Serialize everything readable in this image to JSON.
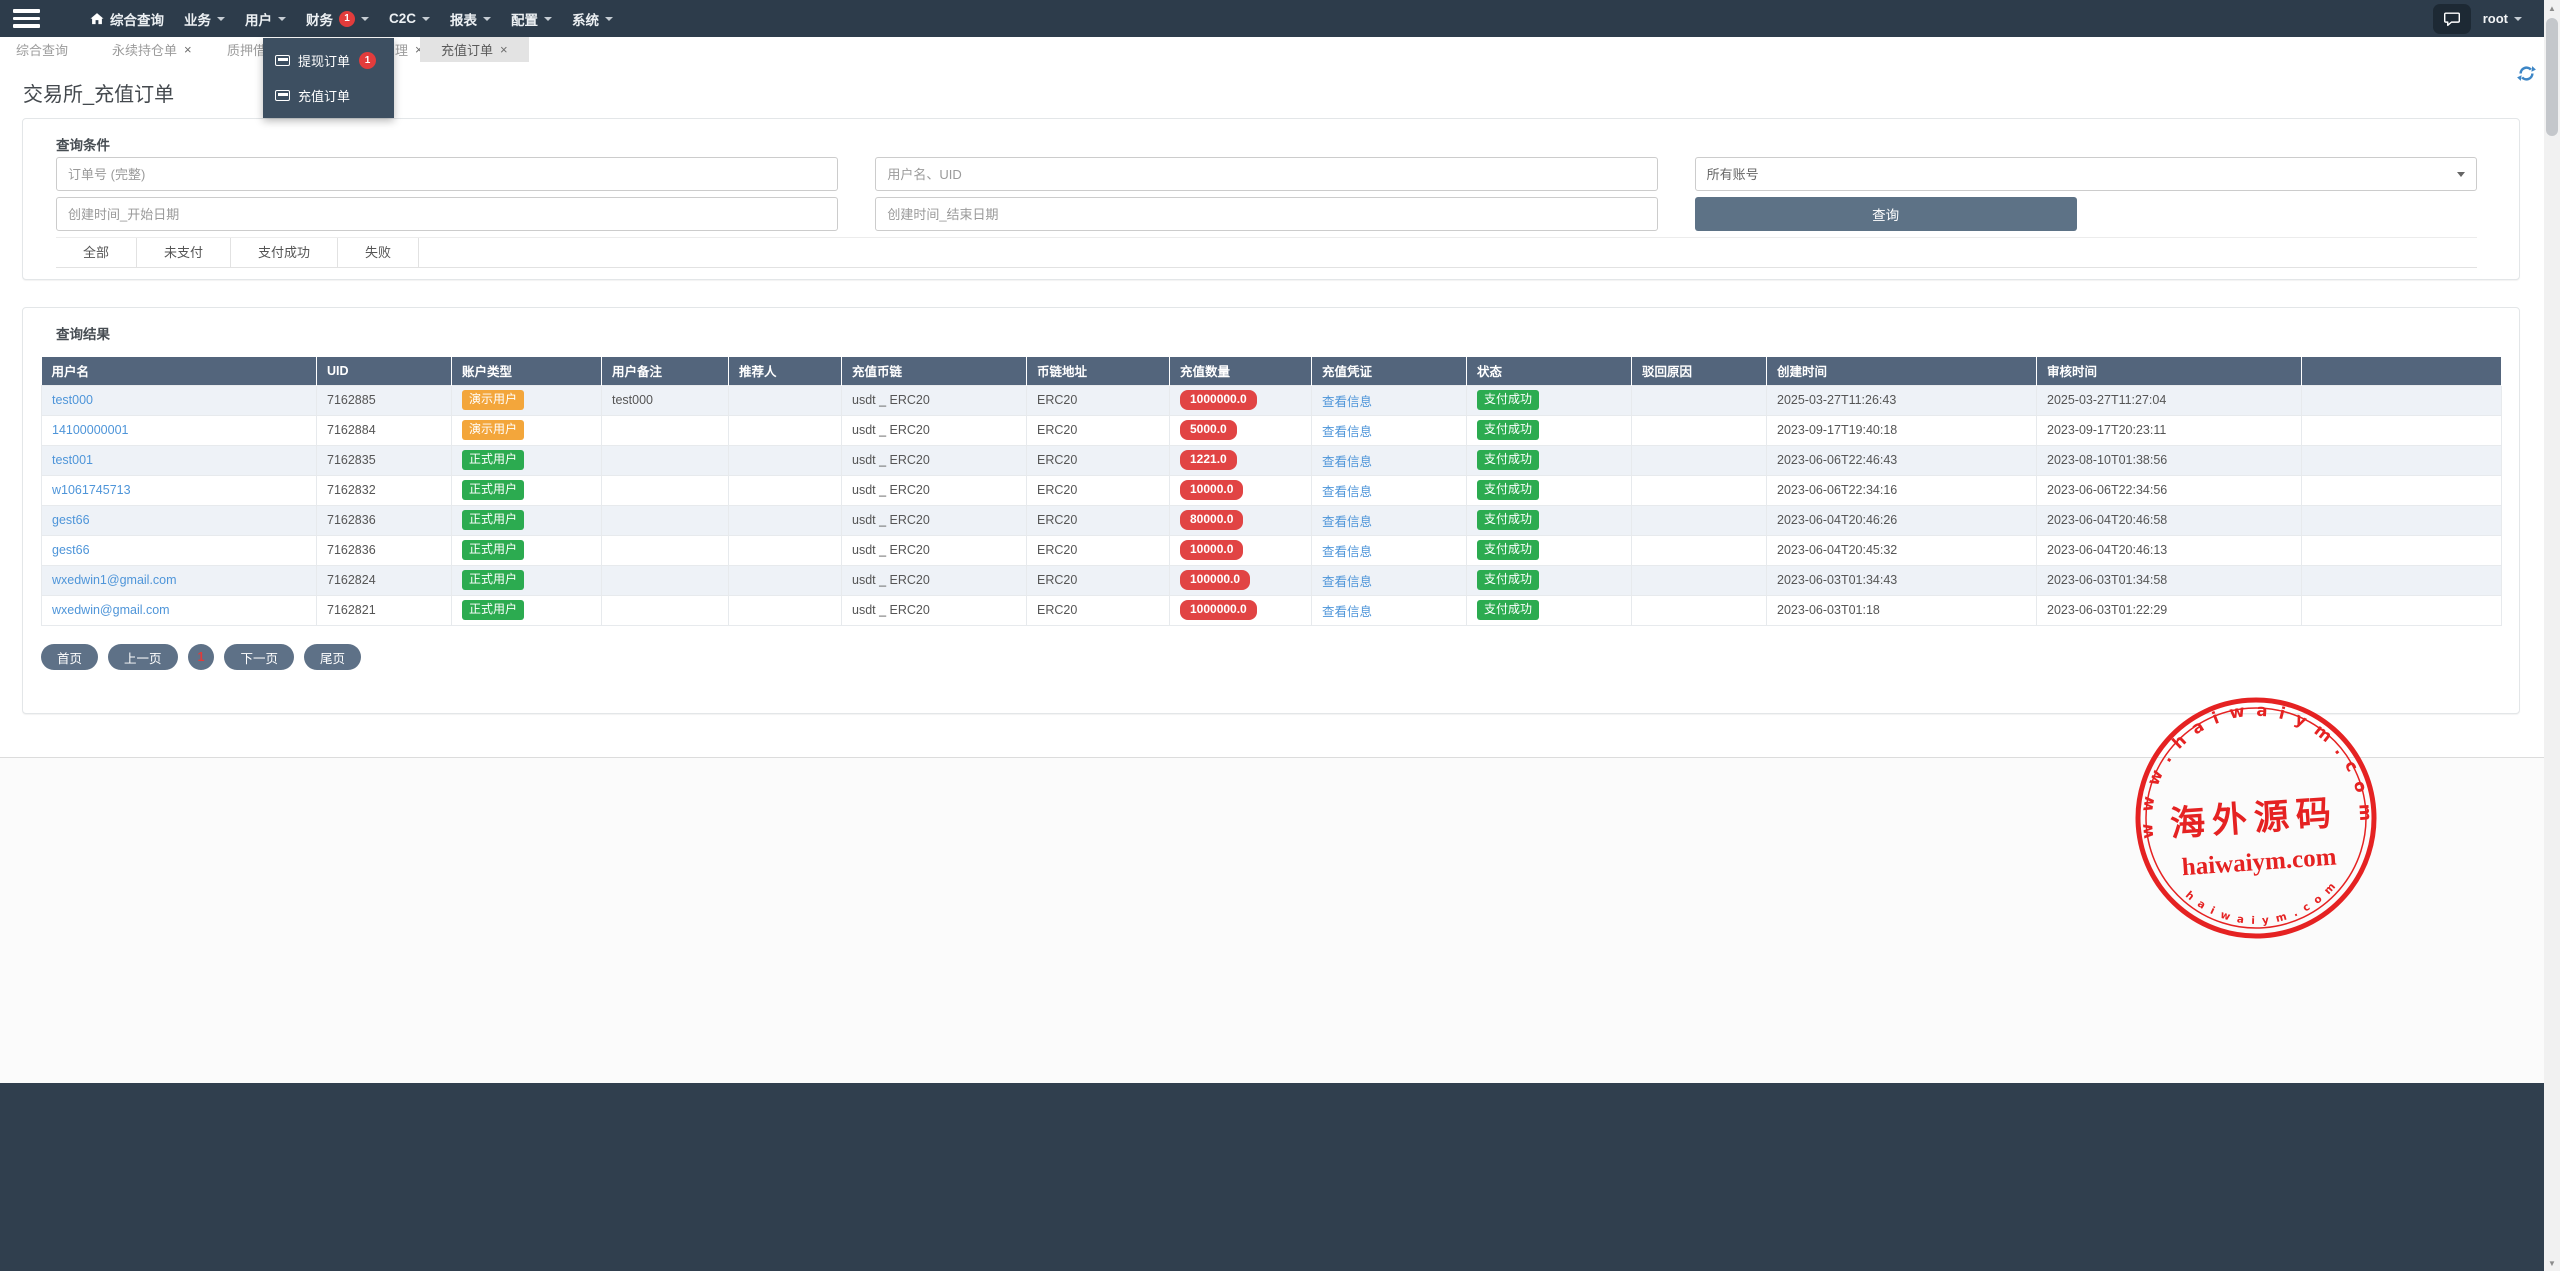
{
  "colors": {
    "navbar_bg": "#2d3c4b",
    "table_header_bg": "#53657c",
    "badge_red": "#e14444",
    "badge_orange": "#f3a63b",
    "badge_green": "#2cab50",
    "link_blue": "#4e95d9",
    "button_slate": "#5d7286",
    "notification_red": "#e23c3c",
    "stamp_red": "#e41717"
  },
  "navbar": {
    "menu": [
      {
        "label": "综合查询",
        "icon": "home",
        "caret": false
      },
      {
        "label": "业务",
        "caret": true
      },
      {
        "label": "用户",
        "caret": true
      },
      {
        "label": "财务",
        "caret": true,
        "badge": "1"
      },
      {
        "label": "C2C",
        "caret": true
      },
      {
        "label": "报表",
        "caret": true
      },
      {
        "label": "配置",
        "caret": true
      },
      {
        "label": "系统",
        "caret": true
      }
    ],
    "user": "root"
  },
  "dropdown": {
    "items": [
      {
        "label": "提现订单",
        "badge": "1"
      },
      {
        "label": "充值订单"
      }
    ]
  },
  "tabs": [
    {
      "label": "综合查询",
      "closable": false,
      "active": false
    },
    {
      "label": "永续持仓单",
      "closable": true,
      "active": false
    },
    {
      "label": "质押借币",
      "closable": true,
      "active": false
    },
    {
      "label": "理",
      "closable": true,
      "active": false
    },
    {
      "label": "充值订单",
      "closable": true,
      "active": true
    }
  ],
  "page": {
    "title": "交易所_充值订单"
  },
  "search": {
    "panel_title": "查询条件",
    "order_no_placeholder": "订单号 (完整)",
    "user_placeholder": "用户名、UID",
    "account_select_value": "所有账号",
    "start_placeholder": "创建时间_开始日期",
    "end_placeholder": "创建时间_结束日期",
    "submit_label": "查询",
    "filters": [
      "全部",
      "未支付",
      "支付成功",
      "失败"
    ]
  },
  "results": {
    "panel_title": "查询结果",
    "headers": [
      "用户名",
      "UID",
      "账户类型",
      "用户备注",
      "推荐人",
      "充值币链",
      "币链地址",
      "充值数量",
      "充值凭证",
      "状态",
      "驳回原因",
      "创建时间",
      "审核时间",
      ""
    ],
    "rows": [
      {
        "username": "test000",
        "uid": "7162885",
        "account_type": "演示用户",
        "account_type_color": "orange",
        "remark": "test000",
        "referrer": "",
        "coin": "usdt _ ERC20",
        "chain": "ERC20",
        "amount": "1000000.0",
        "voucher": "查看信息",
        "status": "支付成功",
        "reject_reason": "",
        "created_at": "2025-03-27T11:26:43",
        "audited_at": "2025-03-27T11:27:04"
      },
      {
        "username": "14100000001",
        "uid": "7162884",
        "account_type": "演示用户",
        "account_type_color": "orange",
        "remark": "",
        "referrer": "",
        "coin": "usdt _ ERC20",
        "chain": "ERC20",
        "amount": "5000.0",
        "voucher": "查看信息",
        "status": "支付成功",
        "reject_reason": "",
        "created_at": "2023-09-17T19:40:18",
        "audited_at": "2023-09-17T20:23:11"
      },
      {
        "username": "test001",
        "uid": "7162835",
        "account_type": "正式用户",
        "account_type_color": "green",
        "remark": "",
        "referrer": "",
        "coin": "usdt _ ERC20",
        "chain": "ERC20",
        "amount": "1221.0",
        "voucher": "查看信息",
        "status": "支付成功",
        "reject_reason": "",
        "created_at": "2023-06-06T22:46:43",
        "audited_at": "2023-08-10T01:38:56"
      },
      {
        "username": "w1061745713",
        "uid": "7162832",
        "account_type": "正式用户",
        "account_type_color": "green",
        "remark": "",
        "referrer": "",
        "coin": "usdt _ ERC20",
        "chain": "ERC20",
        "amount": "10000.0",
        "voucher": "查看信息",
        "status": "支付成功",
        "reject_reason": "",
        "created_at": "2023-06-06T22:34:16",
        "audited_at": "2023-06-06T22:34:56"
      },
      {
        "username": "gest66",
        "uid": "7162836",
        "account_type": "正式用户",
        "account_type_color": "green",
        "remark": "",
        "referrer": "",
        "coin": "usdt _ ERC20",
        "chain": "ERC20",
        "amount": "80000.0",
        "voucher": "查看信息",
        "status": "支付成功",
        "reject_reason": "",
        "created_at": "2023-06-04T20:46:26",
        "audited_at": "2023-06-04T20:46:58"
      },
      {
        "username": "gest66",
        "uid": "7162836",
        "account_type": "正式用户",
        "account_type_color": "green",
        "remark": "",
        "referrer": "",
        "coin": "usdt _ ERC20",
        "chain": "ERC20",
        "amount": "10000.0",
        "voucher": "查看信息",
        "status": "支付成功",
        "reject_reason": "",
        "created_at": "2023-06-04T20:45:32",
        "audited_at": "2023-06-04T20:46:13"
      },
      {
        "username": "wxedwin1@gmail.com",
        "uid": "7162824",
        "account_type": "正式用户",
        "account_type_color": "green",
        "remark": "",
        "referrer": "",
        "coin": "usdt _ ERC20",
        "chain": "ERC20",
        "amount": "100000.0",
        "voucher": "查看信息",
        "status": "支付成功",
        "reject_reason": "",
        "created_at": "2023-06-03T01:34:43",
        "audited_at": "2023-06-03T01:34:58"
      },
      {
        "username": "wxedwin@gmail.com",
        "uid": "7162821",
        "account_type": "正式用户",
        "account_type_color": "green",
        "remark": "",
        "referrer": "",
        "coin": "usdt _ ERC20",
        "chain": "ERC20",
        "amount": "1000000.0",
        "voucher": "查看信息",
        "status": "支付成功",
        "reject_reason": "",
        "created_at": "2023-06-03T01:18",
        "audited_at": "2023-06-03T01:22:29"
      }
    ],
    "pagination": [
      {
        "label": "首页",
        "current": false
      },
      {
        "label": "上一页",
        "current": false
      },
      {
        "label": "1",
        "current": true
      },
      {
        "label": "下一页",
        "current": false
      },
      {
        "label": "尾页",
        "current": false
      }
    ]
  },
  "watermark": {
    "arc_top": "w w w . h a i w a i y m . c o m",
    "center": "海外源码",
    "line": "haiwaiym.com",
    "arc_bottom": "h a i w a i y m . c o m"
  }
}
